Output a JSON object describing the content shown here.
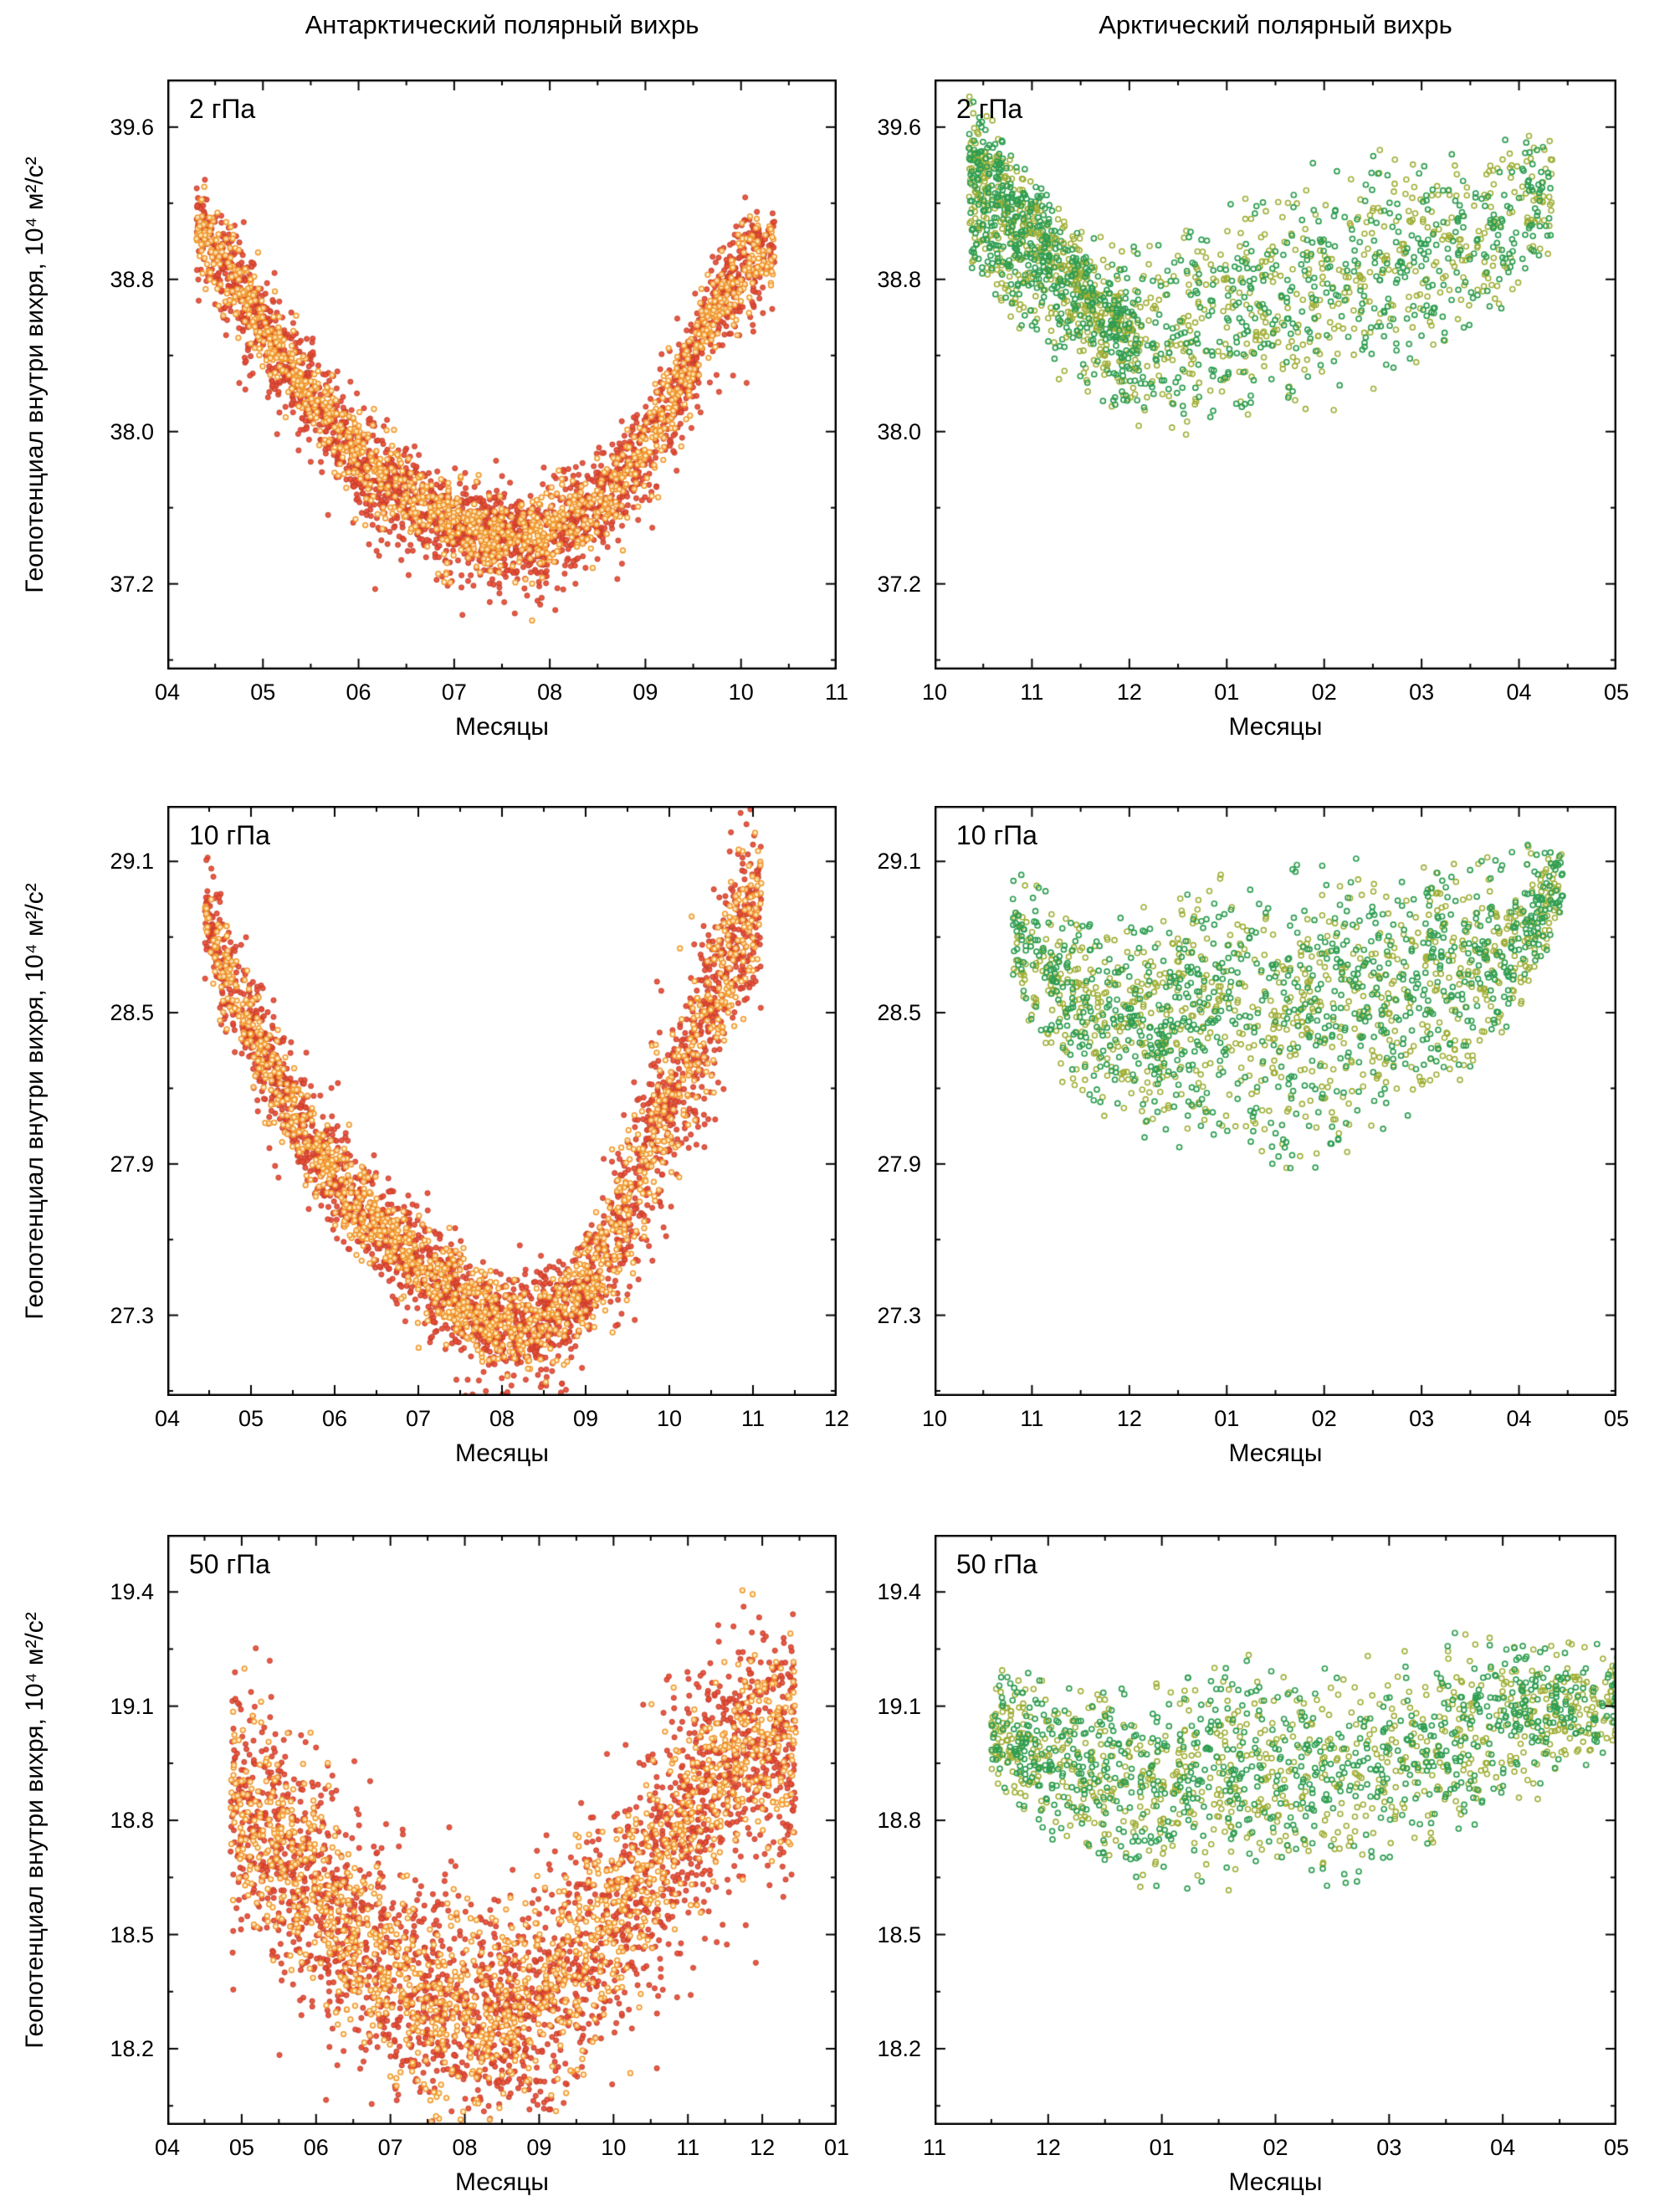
{
  "figure": {
    "column_titles": [
      "Антарктический полярный вихрь",
      "Арктический полярный вихрь"
    ],
    "xlabel": "Месяцы",
    "ylabel": "Геопотенциал внутри вихря, 10⁴ м²/с²"
  },
  "colors": {
    "antarctic_filled": "#e64b35",
    "antarctic_filled_edge": "#b93a26",
    "antarctic_ring": "#f0962e",
    "antarctic_ring_fill": "#ffeec2",
    "arctic_green": "#2f9e52",
    "arctic_olive": "#9fae35",
    "axis": "#000000"
  },
  "chart_data": [
    {
      "id": "antarctic-2hpa",
      "type": "scatter",
      "row": 0,
      "col": 0,
      "label": "2 гПа",
      "xlabel": "Месяцы",
      "ylabel": "Геопотенциал внутри вихря, 10⁴ м²/с²",
      "xlim": [
        4,
        11
      ],
      "ylim": [
        36.75,
        39.85
      ],
      "x_ticks": [
        4,
        5,
        6,
        7,
        8,
        9,
        10,
        11
      ],
      "x_tick_labels": [
        "04",
        "05",
        "06",
        "07",
        "08",
        "09",
        "10",
        "11"
      ],
      "y_ticks": [
        37.2,
        38.0,
        38.8,
        39.6
      ],
      "y_tick_labels": [
        "37.2",
        "38.0",
        "38.8",
        "39.6"
      ],
      "x_minor": 0.5,
      "y_minor": 0.4,
      "seed": 11,
      "trend": [
        [
          4.3,
          39.05
        ],
        [
          4.6,
          38.88
        ],
        [
          5.0,
          38.55
        ],
        [
          5.5,
          38.18
        ],
        [
          6.0,
          37.88
        ],
        [
          6.5,
          37.66
        ],
        [
          7.0,
          37.52
        ],
        [
          7.4,
          37.44
        ],
        [
          7.8,
          37.44
        ],
        [
          8.2,
          37.52
        ],
        [
          8.6,
          37.66
        ],
        [
          9.0,
          37.92
        ],
        [
          9.4,
          38.28
        ],
        [
          9.8,
          38.72
        ],
        [
          10.1,
          38.92
        ],
        [
          10.35,
          38.98
        ]
      ],
      "series": [
        {
          "kind": "band",
          "marker": "filled",
          "color": "#e64b35",
          "edge": "#b93a26",
          "n": 2200,
          "sigma": 0.13,
          "r": 3.1,
          "outlier_frac": 0.06,
          "outlier_max": 0.4
        },
        {
          "kind": "band",
          "marker": "ring",
          "color": "#f0962e",
          "fill": "#ffeec2",
          "n": 1300,
          "sigma": 0.1,
          "r": 2.9,
          "lw": 1.5,
          "outlier_frac": 0.04,
          "outlier_max": 0.3
        }
      ]
    },
    {
      "id": "arctic-2hpa",
      "type": "scatter",
      "row": 0,
      "col": 1,
      "label": "2 гПа",
      "xlabel": "Месяцы",
      "ylabel": "",
      "xlim": [
        10,
        17
      ],
      "ylim": [
        36.75,
        39.85
      ],
      "x_ticks": [
        10,
        11,
        12,
        13,
        14,
        15,
        16,
        17
      ],
      "x_tick_labels": [
        "10",
        "11",
        "12",
        "01",
        "02",
        "03",
        "04",
        "05"
      ],
      "y_ticks": [
        37.2,
        38.0,
        38.8,
        39.6
      ],
      "y_tick_labels": [
        "37.2",
        "38.0",
        "38.8",
        "39.6"
      ],
      "x_minor": 0.5,
      "y_minor": 0.4,
      "seed": 22,
      "env": [
        [
          10.35,
          38.85,
          39.6
        ],
        [
          10.8,
          38.5,
          39.45
        ],
        [
          11.3,
          38.25,
          39.25
        ],
        [
          11.8,
          38.05,
          39.05
        ],
        [
          12.3,
          37.95,
          39.0
        ],
        [
          12.8,
          37.95,
          39.15
        ],
        [
          13.3,
          38.0,
          39.3
        ],
        [
          13.8,
          38.05,
          39.45
        ],
        [
          14.3,
          38.15,
          39.5
        ],
        [
          14.8,
          38.25,
          39.5
        ],
        [
          15.3,
          38.35,
          39.55
        ],
        [
          15.8,
          38.55,
          39.6
        ],
        [
          16.1,
          38.75,
          39.6
        ],
        [
          16.35,
          38.95,
          39.62
        ]
      ],
      "series": [
        {
          "kind": "cloud",
          "marker": "ring",
          "color": "#9fae35",
          "n": 720,
          "r": 3.0,
          "lw": 1.6,
          "x_bias": 1.15
        },
        {
          "kind": "cloud",
          "marker": "ring",
          "color": "#2f9e52",
          "n": 720,
          "r": 3.0,
          "lw": 1.7,
          "x_bias": 1.15
        },
        {
          "kind": "band",
          "marker": "ring",
          "color": "#9fae35",
          "n": 280,
          "sigma": 0.13,
          "r": 3.0,
          "lw": 1.6,
          "trend": [
            [
              10.35,
              39.5
            ],
            [
              10.7,
              39.28
            ],
            [
              11.05,
              39.0
            ],
            [
              11.4,
              38.8
            ],
            [
              11.8,
              38.6
            ],
            [
              12.1,
              38.5
            ]
          ]
        },
        {
          "kind": "band",
          "marker": "ring",
          "color": "#2f9e52",
          "n": 280,
          "sigma": 0.13,
          "r": 3.0,
          "lw": 1.7,
          "trend": [
            [
              10.35,
              39.5
            ],
            [
              10.7,
              39.28
            ],
            [
              11.05,
              39.0
            ],
            [
              11.4,
              38.8
            ],
            [
              11.8,
              38.6
            ],
            [
              12.1,
              38.5
            ]
          ]
        }
      ]
    },
    {
      "id": "antarctic-10hpa",
      "type": "scatter",
      "row": 1,
      "col": 0,
      "label": "10 гПа",
      "xlabel": "Месяцы",
      "ylabel": "Геопотенциал внутри вихря, 10⁴ м²/с²",
      "xlim": [
        4,
        12
      ],
      "ylim": [
        26.98,
        29.32
      ],
      "x_ticks": [
        4,
        5,
        6,
        7,
        8,
        9,
        10,
        11,
        12
      ],
      "x_tick_labels": [
        "04",
        "05",
        "06",
        "07",
        "08",
        "09",
        "10",
        "11",
        "12"
      ],
      "y_ticks": [
        27.3,
        27.9,
        28.5,
        29.1
      ],
      "y_tick_labels": [
        "27.3",
        "27.9",
        "28.5",
        "29.1"
      ],
      "x_minor": 0.5,
      "y_minor": 0.3,
      "seed": 33,
      "trend": [
        [
          4.45,
          28.88
        ],
        [
          4.8,
          28.6
        ],
        [
          5.2,
          28.3
        ],
        [
          5.6,
          28.05
        ],
        [
          6.0,
          27.86
        ],
        [
          6.5,
          27.66
        ],
        [
          7.0,
          27.5
        ],
        [
          7.5,
          27.36
        ],
        [
          8.0,
          27.27
        ],
        [
          8.4,
          27.25
        ],
        [
          8.8,
          27.33
        ],
        [
          9.2,
          27.52
        ],
        [
          9.6,
          27.8
        ],
        [
          10.0,
          28.12
        ],
        [
          10.4,
          28.48
        ],
        [
          10.8,
          28.78
        ],
        [
          11.1,
          28.92
        ]
      ],
      "series": [
        {
          "kind": "band",
          "marker": "filled",
          "color": "#e64b35",
          "edge": "#b93a26",
          "n": 2200,
          "sigma": 0.11,
          "r": 3.1,
          "w2": [
            9.3,
            0.18
          ],
          "outlier_frac": 0.04,
          "outlier_max": 0.25
        },
        {
          "kind": "band",
          "marker": "ring",
          "color": "#f0962e",
          "fill": "#ffeec2",
          "n": 1300,
          "sigma": 0.09,
          "r": 2.9,
          "lw": 1.5,
          "w2": [
            9.3,
            0.15
          ],
          "outlier_frac": 0.03,
          "outlier_max": 0.2
        }
      ]
    },
    {
      "id": "arctic-10hpa",
      "type": "scatter",
      "row": 1,
      "col": 1,
      "label": "10 гПа",
      "xlabel": "Месяцы",
      "ylabel": "",
      "xlim": [
        10,
        17
      ],
      "ylim": [
        26.98,
        29.32
      ],
      "x_ticks": [
        10,
        11,
        12,
        13,
        14,
        15,
        16,
        17
      ],
      "x_tick_labels": [
        "10",
        "11",
        "12",
        "01",
        "02",
        "03",
        "04",
        "05"
      ],
      "y_ticks": [
        27.3,
        27.9,
        28.5,
        29.1
      ],
      "y_tick_labels": [
        "27.3",
        "27.9",
        "28.5",
        "29.1"
      ],
      "x_minor": 0.5,
      "y_minor": 0.3,
      "seed": 44,
      "env": [
        [
          10.8,
          28.55,
          29.08
        ],
        [
          11.2,
          28.25,
          29.0
        ],
        [
          11.6,
          28.1,
          28.9
        ],
        [
          12.0,
          28.0,
          28.92
        ],
        [
          12.5,
          27.95,
          29.0
        ],
        [
          13.0,
          27.88,
          29.08
        ],
        [
          13.5,
          27.8,
          29.1
        ],
        [
          14.0,
          27.85,
          29.15
        ],
        [
          14.5,
          27.95,
          29.12
        ],
        [
          15.0,
          28.05,
          29.15
        ],
        [
          15.5,
          28.2,
          29.18
        ],
        [
          16.0,
          28.45,
          29.2
        ],
        [
          16.45,
          28.85,
          29.18
        ]
      ],
      "series": [
        {
          "kind": "cloud",
          "marker": "ring",
          "color": "#9fae35",
          "n": 900,
          "r": 3.0,
          "lw": 1.6,
          "x_bias": 1.0
        },
        {
          "kind": "cloud",
          "marker": "ring",
          "color": "#2f9e52",
          "n": 900,
          "r": 3.0,
          "lw": 1.7,
          "x_bias": 1.0
        }
      ]
    },
    {
      "id": "antarctic-50hpa",
      "type": "scatter",
      "row": 2,
      "col": 0,
      "label": "50 гПа",
      "xlabel": "Месяцы",
      "ylabel": "Геопотенциал внутри вихря, 10⁴ м²/с²",
      "xlim": [
        4,
        13
      ],
      "ylim": [
        18.0,
        19.55
      ],
      "x_ticks": [
        4,
        5,
        6,
        7,
        8,
        9,
        10,
        11,
        12,
        13
      ],
      "x_tick_labels": [
        "04",
        "05",
        "06",
        "07",
        "08",
        "09",
        "10",
        "11",
        "12",
        "01"
      ],
      "y_ticks": [
        18.2,
        18.5,
        18.8,
        19.1,
        19.4
      ],
      "y_tick_labels": [
        "18.2",
        "18.5",
        "18.8",
        "19.1",
        "19.4"
      ],
      "x_minor": 0.5,
      "y_minor": 0.15,
      "seed": 55,
      "trend": [
        [
          4.85,
          18.86
        ],
        [
          5.2,
          18.8
        ],
        [
          5.6,
          18.7
        ],
        [
          6.0,
          18.6
        ],
        [
          6.5,
          18.49
        ],
        [
          7.0,
          18.4
        ],
        [
          7.5,
          18.32
        ],
        [
          8.0,
          18.27
        ],
        [
          8.5,
          18.28
        ],
        [
          9.0,
          18.34
        ],
        [
          9.5,
          18.44
        ],
        [
          10.0,
          18.55
        ],
        [
          10.5,
          18.68
        ],
        [
          11.0,
          18.82
        ],
        [
          11.5,
          18.95
        ],
        [
          12.0,
          19.02
        ],
        [
          12.45,
          19.0
        ]
      ],
      "series": [
        {
          "kind": "band",
          "marker": "filled",
          "color": "#e64b35",
          "edge": "#b93a26",
          "n": 2300,
          "sigma": 0.16,
          "r": 3.1,
          "outlier_frac": 0.04,
          "outlier_max": 0.3
        },
        {
          "kind": "band",
          "marker": "ring",
          "color": "#f0962e",
          "fill": "#ffeec2",
          "n": 1400,
          "sigma": 0.13,
          "r": 2.9,
          "lw": 1.5,
          "outlier_frac": 0.03,
          "outlier_max": 0.2
        }
      ]
    },
    {
      "id": "arctic-50hpa",
      "type": "scatter",
      "row": 2,
      "col": 1,
      "label": "50 гПа",
      "xlabel": "Месяцы",
      "ylabel": "",
      "xlim": [
        11,
        17
      ],
      "ylim": [
        18.0,
        19.55
      ],
      "x_ticks": [
        11,
        12,
        13,
        14,
        15,
        16,
        17
      ],
      "x_tick_labels": [
        "11",
        "12",
        "01",
        "02",
        "03",
        "04",
        "05"
      ],
      "y_ticks": [
        18.2,
        18.5,
        18.8,
        19.1,
        19.4
      ],
      "y_tick_labels": [
        "18.2",
        "18.5",
        "18.8",
        "19.1",
        "19.4"
      ],
      "x_minor": 0.5,
      "y_minor": 0.15,
      "seed": 66,
      "env": [
        [
          11.5,
          18.88,
          19.22
        ],
        [
          11.9,
          18.75,
          19.2
        ],
        [
          12.3,
          18.68,
          19.18
        ],
        [
          12.8,
          18.62,
          19.2
        ],
        [
          13.3,
          18.6,
          19.22
        ],
        [
          13.8,
          18.6,
          19.25
        ],
        [
          14.3,
          18.62,
          19.22
        ],
        [
          14.8,
          18.58,
          19.25
        ],
        [
          15.3,
          18.68,
          19.3
        ],
        [
          15.8,
          18.78,
          19.33
        ],
        [
          16.3,
          18.85,
          19.3
        ],
        [
          16.8,
          18.95,
          19.28
        ],
        [
          17.05,
          19.0,
          19.25
        ]
      ],
      "series": [
        {
          "kind": "cloud",
          "marker": "ring",
          "color": "#9fae35",
          "n": 850,
          "r": 3.0,
          "lw": 1.6,
          "x_bias": 1.1
        },
        {
          "kind": "cloud",
          "marker": "ring",
          "color": "#2f9e52",
          "n": 850,
          "r": 3.0,
          "lw": 1.7,
          "x_bias": 1.1
        }
      ]
    }
  ]
}
